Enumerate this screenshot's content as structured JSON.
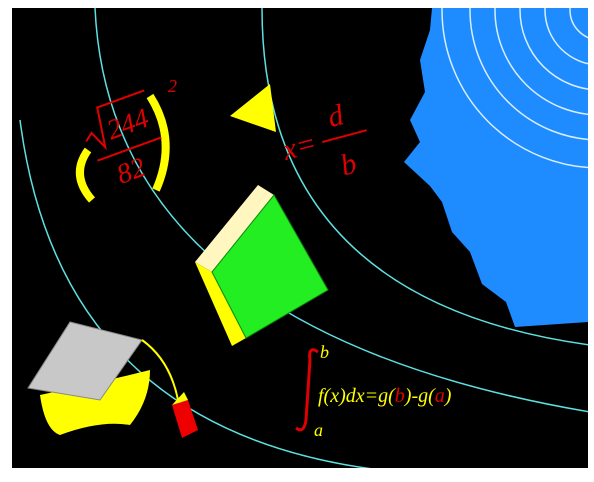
{
  "formula_root": {
    "radicand": "244",
    "denominator": "82",
    "exponent": "2"
  },
  "formula_ratio": {
    "lhs": "x=",
    "numerator": "d",
    "denominator": "b"
  },
  "integral": {
    "upper": "b",
    "lower": "a",
    "parts": [
      "f(x)dx=g(",
      "b",
      ")-g(",
      "a",
      ")"
    ]
  }
}
